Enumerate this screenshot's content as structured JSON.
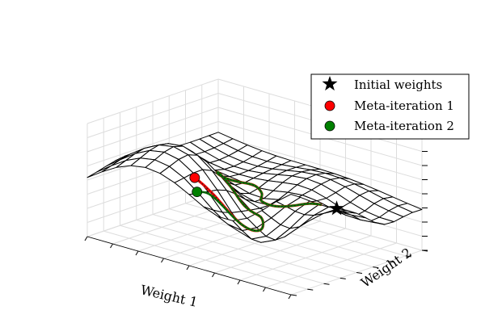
{
  "chart_data": {
    "type": "surface3d",
    "title": "",
    "xlabel": "Weight 1",
    "ylabel": "Weight 2",
    "zlabel": "",
    "xlim": [
      0,
      1
    ],
    "ylim": [
      0,
      1
    ],
    "grid": true,
    "legend_position": "top-right",
    "series": [
      {
        "name": "Initial weights",
        "marker": "star",
        "color": "#000000",
        "points": [
          [
            0.8,
            0.66
          ]
        ]
      },
      {
        "name": "Meta-iteration 1",
        "marker": "circle",
        "color": "#ff0000",
        "points": [
          [
            0.78,
            0.57
          ],
          [
            0.7,
            0.5
          ],
          [
            0.6,
            0.48
          ],
          [
            0.52,
            0.52
          ],
          [
            0.47,
            0.6
          ],
          [
            0.4,
            0.64
          ],
          [
            0.34,
            0.6
          ],
          [
            0.32,
            0.52
          ],
          [
            0.37,
            0.42
          ],
          [
            0.46,
            0.36
          ],
          [
            0.55,
            0.33
          ],
          [
            0.62,
            0.36
          ],
          [
            0.66,
            0.3
          ],
          [
            0.62,
            0.22
          ],
          [
            0.52,
            0.16
          ],
          [
            0.45,
            0.12
          ]
        ]
      },
      {
        "name": "Meta-iteration 2",
        "marker": "circle",
        "color": "#008000",
        "points": [
          [
            0.78,
            0.57
          ],
          [
            0.7,
            0.5
          ],
          [
            0.6,
            0.48
          ],
          [
            0.52,
            0.52
          ],
          [
            0.47,
            0.6
          ],
          [
            0.4,
            0.64
          ],
          [
            0.34,
            0.6
          ],
          [
            0.32,
            0.52
          ],
          [
            0.37,
            0.42
          ],
          [
            0.46,
            0.36
          ],
          [
            0.55,
            0.33
          ],
          [
            0.62,
            0.36
          ],
          [
            0.66,
            0.3
          ],
          [
            0.62,
            0.22
          ],
          [
            0.52,
            0.14
          ],
          [
            0.5,
            0.06
          ]
        ]
      }
    ]
  },
  "legend": {
    "items": [
      {
        "label": "Initial weights",
        "marker": "star",
        "color": "#000000"
      },
      {
        "label": "Meta-iteration 1",
        "marker": "circle",
        "color": "#ff0000"
      },
      {
        "label": "Meta-iteration 2",
        "marker": "circle",
        "color": "#008000"
      }
    ]
  },
  "colors": {
    "surface_line": "#000000",
    "grid": "#dddddd",
    "path_red": "#ff0000",
    "path_green": "#008000"
  }
}
